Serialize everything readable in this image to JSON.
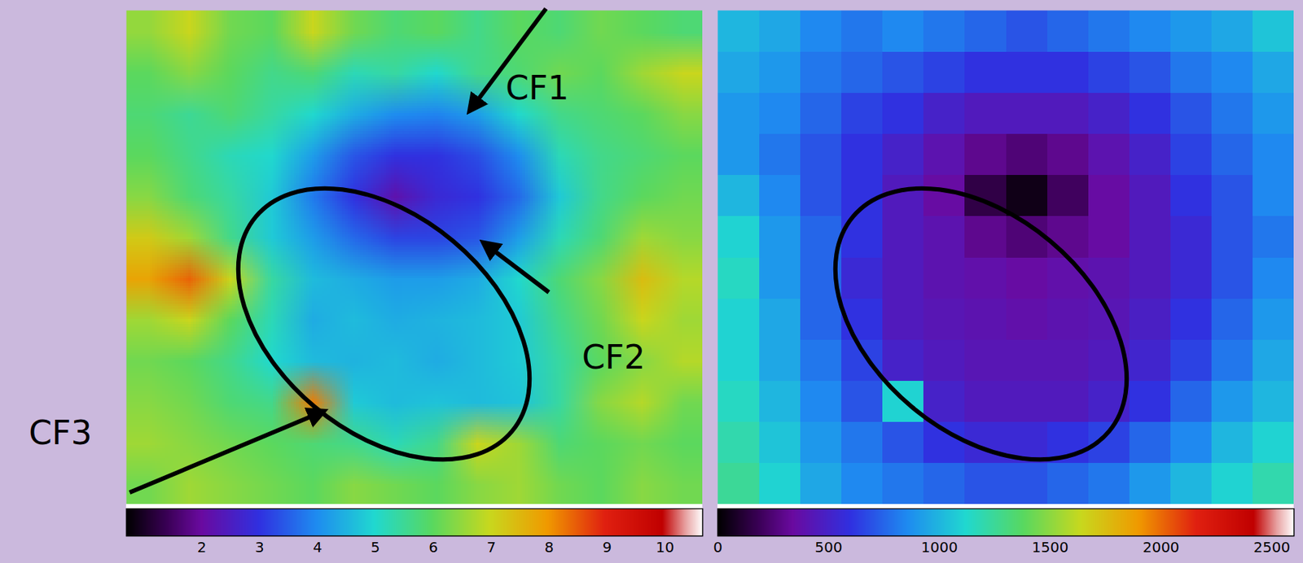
{
  "chart_data": [
    {
      "type": "heatmap",
      "annotations": [
        "CF1",
        "CF2",
        "CF3"
      ],
      "cells": [
        [
          6.5,
          7.0,
          6.2,
          6.0,
          7.0,
          6.2,
          5.8,
          6.0,
          5.6,
          6.0,
          5.8,
          6.2,
          6.0,
          5.8
        ],
        [
          6.0,
          6.4,
          6.0,
          5.6,
          5.8,
          5.2,
          5.4,
          5.0,
          5.6,
          5.8,
          6.2,
          6.0,
          6.6,
          7.0
        ],
        [
          5.8,
          5.5,
          5.8,
          5.4,
          5.0,
          4.4,
          4.0,
          3.9,
          4.2,
          5.0,
          5.6,
          5.8,
          6.0,
          6.4
        ],
        [
          6.0,
          5.6,
          5.2,
          5.0,
          4.2,
          3.4,
          3.0,
          3.0,
          3.3,
          4.0,
          5.2,
          5.6,
          5.8,
          6.0
        ],
        [
          6.4,
          5.8,
          5.4,
          4.8,
          3.8,
          3.0,
          2.2,
          2.8,
          3.0,
          3.6,
          4.8,
          5.6,
          6.0,
          6.2
        ],
        [
          7.2,
          6.6,
          5.6,
          4.8,
          4.2,
          3.6,
          3.2,
          3.2,
          3.4,
          4.2,
          5.2,
          5.8,
          6.6,
          6.4
        ],
        [
          7.8,
          8.4,
          7.0,
          5.4,
          4.6,
          4.4,
          4.2,
          4.2,
          4.4,
          5.0,
          5.8,
          6.4,
          7.4,
          6.8
        ],
        [
          6.6,
          7.0,
          6.0,
          5.2,
          4.4,
          4.6,
          4.4,
          4.5,
          4.6,
          4.8,
          5.6,
          6.2,
          7.0,
          6.6
        ],
        [
          6.2,
          6.0,
          5.6,
          5.0,
          4.6,
          4.5,
          4.6,
          4.4,
          4.6,
          4.8,
          5.4,
          6.0,
          6.4,
          6.8
        ],
        [
          6.4,
          6.2,
          5.8,
          5.6,
          8.2,
          4.8,
          4.6,
          4.7,
          4.6,
          4.7,
          5.4,
          6.4,
          6.8,
          6.2
        ],
        [
          6.6,
          6.4,
          6.2,
          6.0,
          5.8,
          5.6,
          5.2,
          5.6,
          7.0,
          6.6,
          5.8,
          6.0,
          6.2,
          6.0
        ],
        [
          6.2,
          6.6,
          6.4,
          6.2,
          6.0,
          6.4,
          6.2,
          6.0,
          6.4,
          6.6,
          6.2,
          6.0,
          6.4,
          6.2
        ]
      ],
      "colorbar": {
        "lim": [
          0.7,
          10.65
        ],
        "ticks": [
          2,
          3,
          4,
          5,
          6,
          7,
          8,
          9,
          10
        ]
      }
    },
    {
      "type": "heatmap",
      "cells": [
        [
          1000,
          950,
          850,
          800,
          850,
          800,
          750,
          700,
          750,
          800,
          850,
          900,
          950,
          1050
        ],
        [
          950,
          900,
          800,
          750,
          700,
          650,
          600,
          600,
          600,
          650,
          700,
          800,
          850,
          950
        ],
        [
          900,
          850,
          750,
          650,
          600,
          500,
          450,
          450,
          450,
          500,
          600,
          700,
          800,
          900
        ],
        [
          900,
          800,
          700,
          600,
          500,
          400,
          300,
          250,
          300,
          400,
          500,
          650,
          750,
          850
        ],
        [
          1000,
          850,
          700,
          600,
          450,
          350,
          150,
          50,
          200,
          350,
          450,
          600,
          700,
          850
        ],
        [
          1100,
          900,
          750,
          600,
          450,
          400,
          300,
          250,
          300,
          350,
          450,
          550,
          700,
          800
        ],
        [
          1150,
          900,
          750,
          550,
          450,
          400,
          380,
          350,
          380,
          400,
          450,
          550,
          700,
          850
        ],
        [
          1100,
          950,
          750,
          600,
          450,
          420,
          400,
          380,
          400,
          420,
          480,
          600,
          750,
          900
        ],
        [
          1100,
          950,
          800,
          650,
          500,
          450,
          420,
          420,
          420,
          450,
          520,
          650,
          800,
          950
        ],
        [
          1150,
          1000,
          850,
          700,
          1100,
          500,
          450,
          450,
          450,
          500,
          600,
          750,
          900,
          1000
        ],
        [
          1200,
          1050,
          900,
          800,
          700,
          600,
          550,
          550,
          600,
          650,
          750,
          850,
          1000,
          1100
        ],
        [
          1250,
          1100,
          950,
          850,
          800,
          750,
          700,
          700,
          750,
          800,
          900,
          1000,
          1100,
          1200
        ]
      ],
      "colorbar": {
        "lim": [
          0,
          2600
        ],
        "ticks": [
          0,
          500,
          1000,
          1500,
          2000,
          2500
        ]
      }
    }
  ]
}
